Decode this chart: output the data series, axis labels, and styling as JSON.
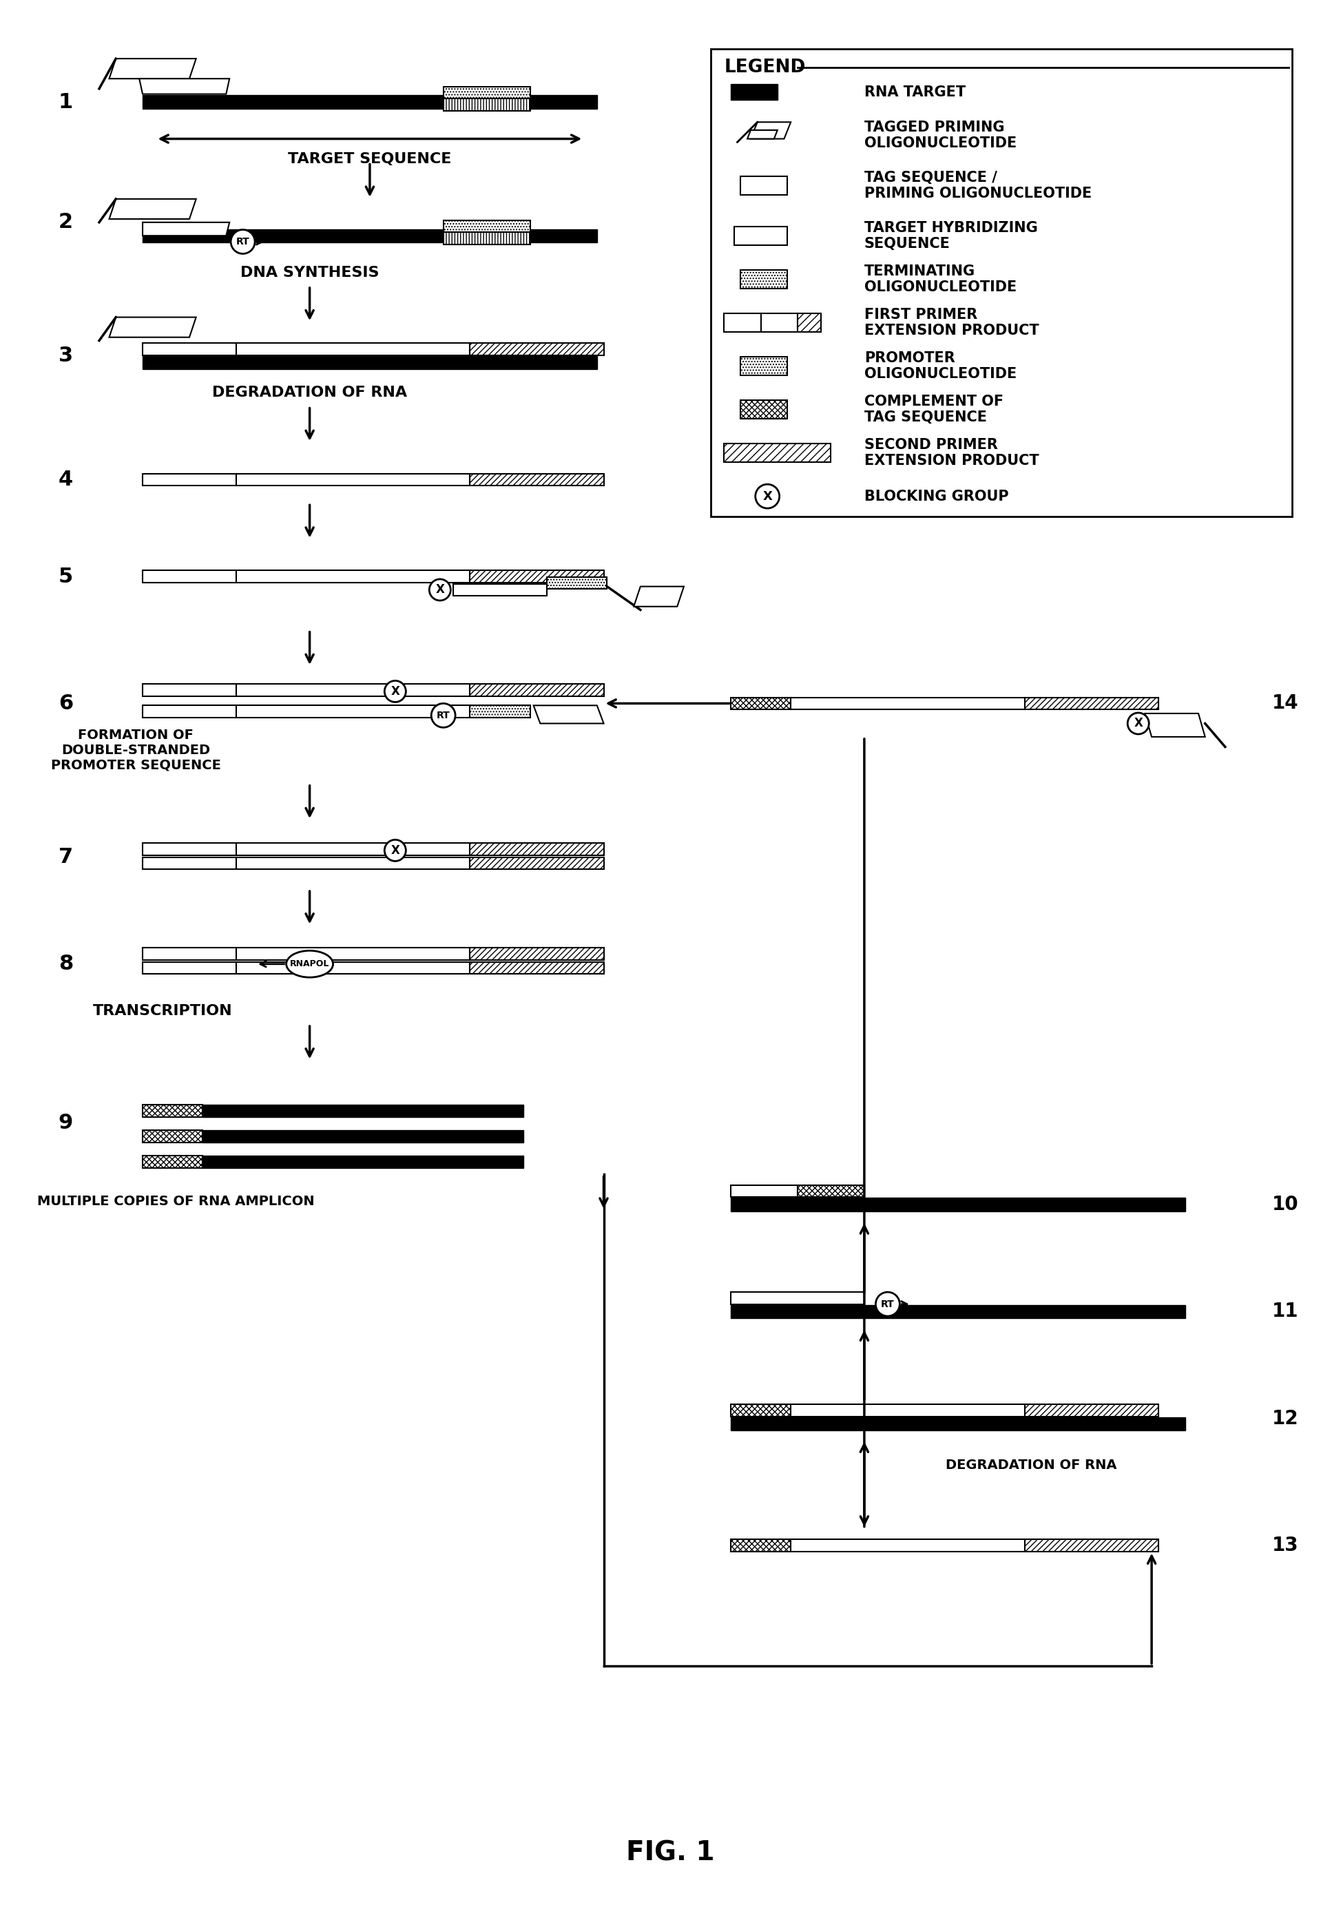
{
  "title": "FIG. 1",
  "bg_color": "#ffffff",
  "fig_width": 19.18,
  "fig_height": 27.85,
  "colors": {
    "black": "#000000",
    "white": "#ffffff",
    "gray": "#888888"
  },
  "legend_items": [
    {
      "symbol": "solid_rect",
      "label": "RNA TARGET"
    },
    {
      "symbol": "tagged_oligo",
      "label": "TAGGED PRIMING\nOLIGONUCLEOTIDE"
    },
    {
      "symbol": "empty_rect",
      "label": "TAG SEQUENCE /\nPRIMING OLIGONUCLEOTIDE"
    },
    {
      "symbol": "hstripe_rect",
      "label": "TARGET HYBRIDIZING\nSEQUENCE"
    },
    {
      "symbol": "dot_rect",
      "label": "TERMINATING\nOLIGONUCLEOTIDE"
    },
    {
      "symbol": "first_primer",
      "label": "FIRST PRIMER\nEXTENSION PRODUCT"
    },
    {
      "symbol": "promoter_oligo",
      "label": "PROMOTER\nOLIGONUCLEOTIDE"
    },
    {
      "symbol": "xhatch_rect",
      "label": "COMPLEMENT OF\nTAG SEQUENCE"
    },
    {
      "symbol": "second_primer",
      "label": "SECOND PRIMER\nEXTENSION PRODUCT"
    },
    {
      "symbol": "blocking_group",
      "label": "BLOCKING GROUP"
    }
  ]
}
